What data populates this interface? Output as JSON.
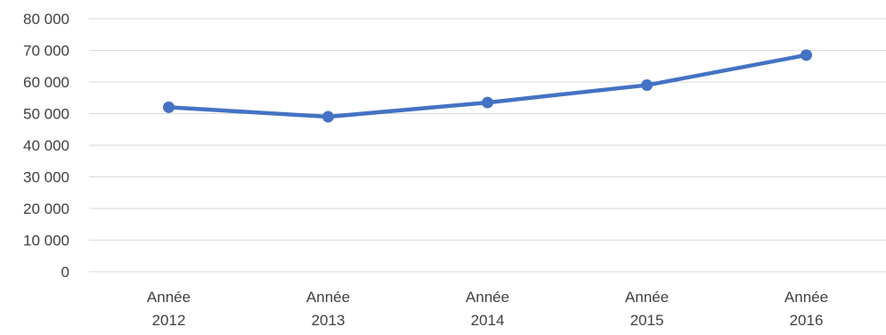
{
  "chart_data": {
    "type": "line",
    "title": "",
    "xlabel": "",
    "ylabel": "",
    "categories": [
      [
        "Année",
        "2012"
      ],
      [
        "Année",
        "2013"
      ],
      [
        "Année",
        "2014"
      ],
      [
        "Année",
        "2015"
      ],
      [
        "Année",
        "2016"
      ]
    ],
    "series": [
      {
        "values": [
          52000,
          49000,
          53500,
          59000,
          68500
        ],
        "color": "#4472c4"
      }
    ],
    "ylim": [
      0,
      80000
    ],
    "yticks": [
      {
        "value": 0,
        "label": "0"
      },
      {
        "value": 10000,
        "label": "10 000"
      },
      {
        "value": 20000,
        "label": "20 000"
      },
      {
        "value": 30000,
        "label": "30 000"
      },
      {
        "value": 40000,
        "label": "40 000"
      },
      {
        "value": 50000,
        "label": "50 000"
      },
      {
        "value": 60000,
        "label": "60 000"
      },
      {
        "value": 70000,
        "label": "70 000"
      },
      {
        "value": 80000,
        "label": "80 000"
      }
    ],
    "grid": true,
    "legend": "none",
    "gridline_color": "#d9d9d9",
    "text_color": "#404040"
  }
}
